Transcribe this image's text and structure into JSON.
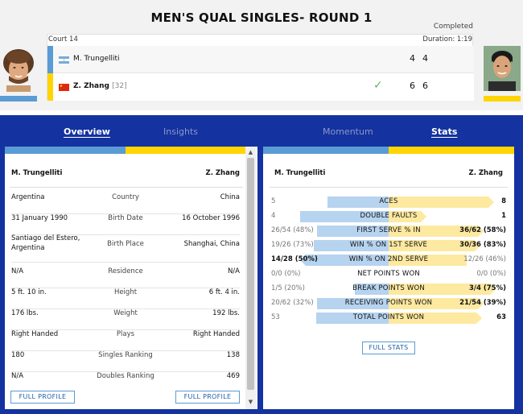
{
  "match": {
    "title": "MEN'S QUAL SINGLES- ROUND 1",
    "status": "Completed",
    "court": "Court 14",
    "duration": "Duration: 1:19"
  },
  "players": [
    {
      "name": "M. Trungelliti",
      "seed": "",
      "sets": [
        "4",
        "4"
      ],
      "color": "#5b9bd5",
      "flag": "argentina-flag-icon"
    },
    {
      "name": "Z. Zhang",
      "seed": "[32]",
      "sets": [
        "6",
        "6"
      ],
      "color": "#ffd500",
      "flag": "china-flag-icon",
      "winner": true
    }
  ],
  "tabs": {
    "left": [
      {
        "label": "Overview",
        "active": true
      },
      {
        "label": "Insights",
        "active": false
      }
    ],
    "right": [
      {
        "label": "Momentum",
        "active": false
      },
      {
        "label": "Stats",
        "active": true
      }
    ]
  },
  "profile": {
    "p1": "M. Trungelliti",
    "p2": "Z. Zhang",
    "rows": [
      {
        "label": "Country",
        "p1": "Argentina",
        "p2": "China"
      },
      {
        "label": "Birth Date",
        "p1": "31 January 1990",
        "p2": "16 October 1996"
      },
      {
        "label": "Birth Place",
        "p1": "Santiago del Estero, Argentina",
        "p2": "Shanghai, China"
      },
      {
        "label": "Residence",
        "p1": "N/A",
        "p2": "N/A"
      },
      {
        "label": "Height",
        "p1": "5 ft. 10 in.",
        "p2": "6 ft. 4 in."
      },
      {
        "label": "Weight",
        "p1": "176 lbs.",
        "p2": "192 lbs."
      },
      {
        "label": "Plays",
        "p1": "Right Handed",
        "p2": "Right Handed"
      },
      {
        "label": "Singles Ranking",
        "p1": "180",
        "p2": "138"
      },
      {
        "label": "Doubles Ranking",
        "p1": "N/A",
        "p2": "469"
      }
    ],
    "full_profile_label": "FULL PROFILE"
  },
  "stats": {
    "p1": "M. Trungelliti",
    "p2": "Z. Zhang",
    "rows": [
      {
        "label": "ACES",
        "p1": "5",
        "p2": "8",
        "p1_share": 0.385,
        "p2_share": 0.615,
        "winner": "p2"
      },
      {
        "label": "DOUBLE FAULTS",
        "p1": "4",
        "p2": "1",
        "p1_share": 0.8,
        "p2_share": 0.2,
        "winner": "p2"
      },
      {
        "label": "FIRST SERVE % IN",
        "p1": "26/54 (48%)",
        "p2": "36/62 (58%)",
        "p1_share": 0.45,
        "p2_share": 0.55,
        "winner": "p2"
      },
      {
        "label": "WIN % ON 1ST SERVE",
        "p1": "19/26 (73%)",
        "p2": "30/36 (83%)",
        "p1_share": 0.47,
        "p2_share": 0.53,
        "winner": "p2"
      },
      {
        "label": "WIN % ON 2ND SERVE",
        "p1": "14/28 (50%)",
        "p2": "12/26 (46%)",
        "p1_share": 0.52,
        "p2_share": 0.48,
        "winner": "p1"
      },
      {
        "label": "NET POINTS WON",
        "p1": "0/0 (0%)",
        "p2": "0/0 (0%)",
        "p1_share": 0,
        "p2_share": 0,
        "winner": ""
      },
      {
        "label": "BREAK POINTS WON",
        "p1": "1/5 (20%)",
        "p2": "3/4 (75%)",
        "p1_share": 0.21,
        "p2_share": 0.79,
        "winner": "p2"
      },
      {
        "label": "RECEIVING POINTS WON",
        "p1": "20/62 (32%)",
        "p2": "21/54 (39%)",
        "p1_share": 0.45,
        "p2_share": 0.55,
        "winner": "p2"
      },
      {
        "label": "TOTAL POINTS WON",
        "p1": "53",
        "p2": "63",
        "p1_share": 0.457,
        "p2_share": 0.543,
        "winner": "p2"
      }
    ],
    "full_stats_label": "FULL STATS"
  },
  "colors": {
    "p1": "#5b9bd5",
    "p2": "#ffd500",
    "background": "#1432a0"
  }
}
